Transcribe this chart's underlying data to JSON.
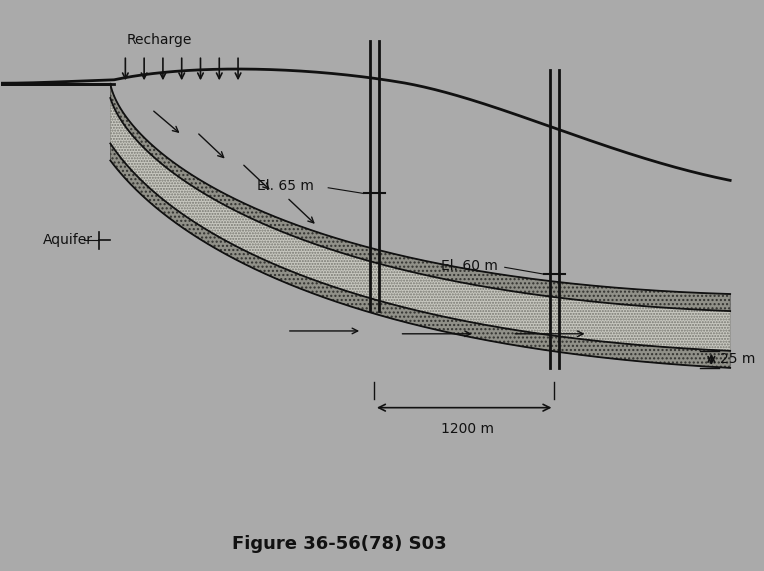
{
  "bg_color": "#aaaaaa",
  "title": "Figure 36-56(78) S03",
  "title_fontsize": 13,
  "label_recharge": "Recharge",
  "label_aquifer": "Aquifer",
  "label_el65": "El. 65 m",
  "label_el60": "El. 60 m",
  "label_1200m": "1200 m",
  "label_25m": "25 m",
  "line_color": "#111111",
  "aquifer_fc": "#c8c8c0",
  "confining_fc": "#888880",
  "wx1": 4.9,
  "wx2": 7.3
}
